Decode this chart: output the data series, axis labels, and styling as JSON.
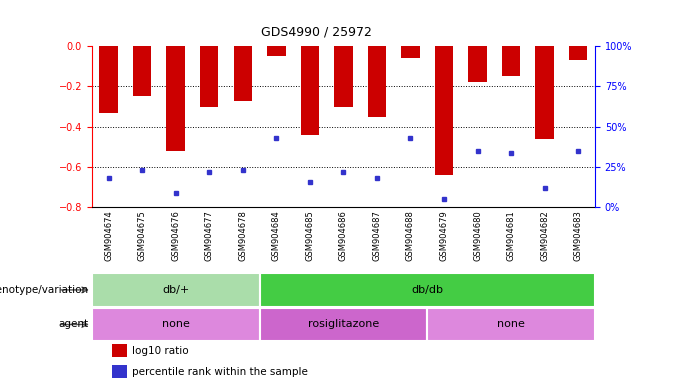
{
  "title": "GDS4990 / 25972",
  "samples": [
    "GSM904674",
    "GSM904675",
    "GSM904676",
    "GSM904677",
    "GSM904678",
    "GSM904684",
    "GSM904685",
    "GSM904686",
    "GSM904687",
    "GSM904688",
    "GSM904679",
    "GSM904680",
    "GSM904681",
    "GSM904682",
    "GSM904683"
  ],
  "log10_ratio": [
    -0.33,
    -0.25,
    -0.52,
    -0.3,
    -0.27,
    -0.05,
    -0.44,
    -0.3,
    -0.35,
    -0.06,
    -0.64,
    -0.18,
    -0.15,
    -0.46,
    -0.07
  ],
  "percentile": [
    18,
    23,
    9,
    22,
    23,
    43,
    16,
    22,
    18,
    43,
    5,
    35,
    34,
    12,
    35
  ],
  "ylim_left": [
    -0.8,
    0
  ],
  "ylim_right": [
    0,
    100
  ],
  "yticks_left": [
    0,
    -0.2,
    -0.4,
    -0.6,
    -0.8
  ],
  "yticks_right": [
    0,
    25,
    50,
    75,
    100
  ],
  "bar_color": "#cc0000",
  "dot_color": "#3333cc",
  "bg_color": "#ffffff",
  "xtick_bg": "#cccccc",
  "genotype_groups": [
    {
      "label": "db/+",
      "start": 0,
      "end": 5,
      "color": "#aaddaa"
    },
    {
      "label": "db/db",
      "start": 5,
      "end": 15,
      "color": "#44cc44"
    }
  ],
  "agent_groups": [
    {
      "label": "none",
      "start": 0,
      "end": 5,
      "color": "#dd88dd"
    },
    {
      "label": "rosiglitazone",
      "start": 5,
      "end": 10,
      "color": "#cc66cc"
    },
    {
      "label": "none",
      "start": 10,
      "end": 15,
      "color": "#dd88dd"
    }
  ],
  "legend_items": [
    {
      "color": "#cc0000",
      "label": "log10 ratio"
    },
    {
      "color": "#3333cc",
      "label": "percentile rank within the sample"
    }
  ],
  "title_fontsize": 9,
  "tick_fontsize": 7,
  "bar_fontsize": 6,
  "label_fontsize": 7.5,
  "annot_fontsize": 8
}
